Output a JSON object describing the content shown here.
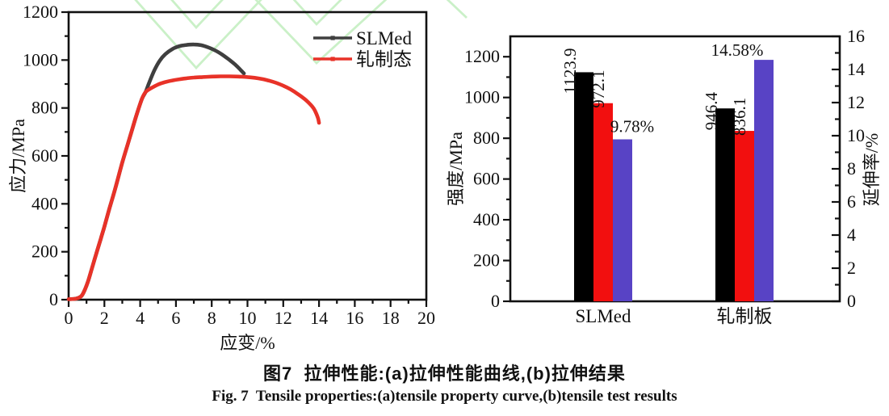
{
  "figure_caption": {
    "zh": "图7  拉伸性能:(a)拉伸性能曲线,(b)拉伸结果",
    "en": "Fig. 7  Tensile properties:(a)tensile property curve,(b)tensile test results"
  },
  "colors": {
    "axis": "#111111",
    "tick_label": "#111111",
    "watermark_green": "#9fe49b",
    "caption_text": "#111111"
  },
  "chart_data": [
    {
      "type": "line",
      "panel": "a",
      "xlabel": "应变/%",
      "ylabel": "应力/MPa",
      "xlim": [
        0,
        20
      ],
      "ylim": [
        0,
        1200
      ],
      "x_major_ticks": [
        0,
        2,
        4,
        6,
        8,
        10,
        12,
        14,
        16,
        18,
        20
      ],
      "y_major_ticks": [
        0,
        200,
        400,
        600,
        800,
        1000,
        1200
      ],
      "x_minor_step": 1,
      "y_minor_step": 100,
      "grid": false,
      "legend_position": "top-right",
      "series": [
        {
          "name": "SLMed",
          "color": "#3f3f3f",
          "points": [
            [
              0,
              2
            ],
            [
              0.4,
              4
            ],
            [
              0.7,
              14
            ],
            [
              0.9,
              40
            ],
            [
              1.1,
              80
            ],
            [
              1.3,
              130
            ],
            [
              1.45,
              168
            ],
            [
              1.6,
              205
            ],
            [
              1.8,
              255
            ],
            [
              2.0,
              305
            ],
            [
              2.3,
              385
            ],
            [
              2.6,
              462
            ],
            [
              3.0,
              572
            ],
            [
              3.4,
              672
            ],
            [
              3.8,
              772
            ],
            [
              4.1,
              838
            ],
            [
              4.3,
              866
            ],
            [
              4.5,
              905
            ],
            [
              4.8,
              958
            ],
            [
              5.1,
              998
            ],
            [
              5.4,
              1024
            ],
            [
              5.8,
              1046
            ],
            [
              6.2,
              1058
            ],
            [
              6.6,
              1063
            ],
            [
              7.0,
              1065
            ],
            [
              7.4,
              1062
            ],
            [
              7.8,
              1053
            ],
            [
              8.2,
              1040
            ],
            [
              8.6,
              1022
            ],
            [
              9.0,
              1000
            ],
            [
              9.3,
              982
            ],
            [
              9.6,
              960
            ],
            [
              9.8,
              944
            ]
          ]
        },
        {
          "name": "轧制态",
          "color": "#e83228",
          "points": [
            [
              0,
              2
            ],
            [
              0.4,
              4
            ],
            [
              0.7,
              14
            ],
            [
              0.9,
              40
            ],
            [
              1.1,
              80
            ],
            [
              1.3,
              130
            ],
            [
              1.45,
              168
            ],
            [
              1.6,
              205
            ],
            [
              1.8,
              255
            ],
            [
              2.0,
              305
            ],
            [
              2.3,
              385
            ],
            [
              2.6,
              462
            ],
            [
              3.0,
              572
            ],
            [
              3.4,
              672
            ],
            [
              3.8,
              772
            ],
            [
              4.1,
              838
            ],
            [
              4.3,
              866
            ],
            [
              4.6,
              882
            ],
            [
              5.0,
              898
            ],
            [
              5.4,
              908
            ],
            [
              5.8,
              915
            ],
            [
              6.2,
              920
            ],
            [
              6.6,
              924
            ],
            [
              7.0,
              927
            ],
            [
              7.5,
              929
            ],
            [
              8.0,
              931
            ],
            [
              8.5,
              932
            ],
            [
              9.0,
              932
            ],
            [
              9.5,
              931
            ],
            [
              10.0,
              929
            ],
            [
              10.4,
              926
            ],
            [
              10.8,
              921
            ],
            [
              11.2,
              914
            ],
            [
              11.6,
              905
            ],
            [
              12.0,
              893
            ],
            [
              12.4,
              878
            ],
            [
              12.8,
              859
            ],
            [
              13.2,
              837
            ],
            [
              13.5,
              816
            ],
            [
              13.7,
              798
            ],
            [
              13.85,
              776
            ],
            [
              13.95,
              756
            ],
            [
              14.0,
              738
            ]
          ]
        }
      ]
    },
    {
      "type": "bar",
      "panel": "b",
      "categories": [
        "SLMed",
        "轧制板"
      ],
      "ylabel_left": "强度/MPa",
      "ylabel_right": "延伸率/%",
      "ylim_left": [
        0,
        1300
      ],
      "ylim_right": [
        0,
        16
      ],
      "left_major_ticks": [
        0,
        200,
        400,
        600,
        800,
        1000,
        1200
      ],
      "left_minor_step": 100,
      "right_major_ticks": [
        0,
        2,
        4,
        6,
        8,
        10,
        12,
        14,
        16
      ],
      "right_minor_step": 1,
      "grid": false,
      "series": [
        {
          "axis": "left",
          "color": "#000000",
          "values": [
            1123.9,
            946.4
          ],
          "value_labels": [
            "1123.9",
            "946.4"
          ],
          "label_rotated": true
        },
        {
          "axis": "left",
          "color": "#f20f0f",
          "values": [
            972.1,
            836.1
          ],
          "value_labels": [
            "972.1",
            "836.1"
          ],
          "label_rotated": true
        },
        {
          "axis": "right",
          "color": "#5843c5",
          "values": [
            9.78,
            14.58
          ],
          "value_labels": [
            "9.78%",
            "14.58%"
          ],
          "label_rotated": false
        }
      ]
    }
  ]
}
